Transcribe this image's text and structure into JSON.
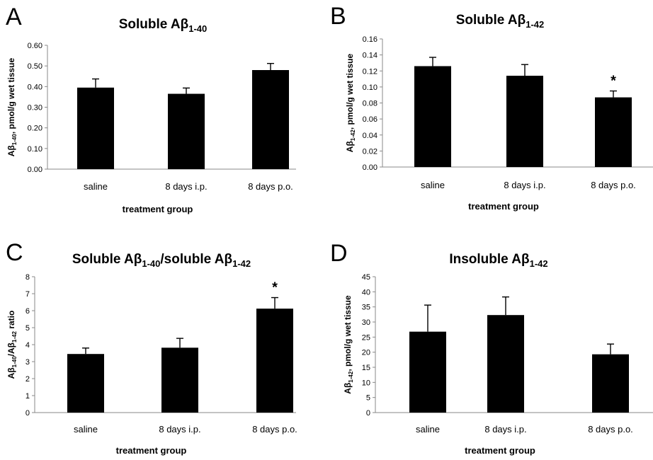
{
  "chart_data": [
    {
      "type": "bar",
      "panel": "A",
      "title": "Soluble Aβ",
      "title_sub": "1-40",
      "ylabel_pre": "Aβ",
      "ylabel_sub": "1-40",
      "ylabel_post": ", pmol/g wet tissue",
      "xlabel": "treatment group",
      "categories": [
        "saline",
        "8 days i.p.",
        "8 days p.o."
      ],
      "values": [
        0.395,
        0.365,
        0.48
      ],
      "errors": [
        0.042,
        0.028,
        0.032
      ],
      "ylim": [
        0,
        0.6
      ],
      "yticks": [
        "0.00",
        "0.10",
        "0.20",
        "0.30",
        "0.40",
        "0.50",
        "0.60"
      ],
      "significance": [
        "",
        "",
        ""
      ]
    },
    {
      "type": "bar",
      "panel": "B",
      "title": "Soluble Aβ",
      "title_sub": "1-42",
      "ylabel_pre": "Aβ",
      "ylabel_sub": "1-42",
      "ylabel_post": ", pmol/g wet tissue",
      "xlabel": "treatment group",
      "categories": [
        "saline",
        "8 days i.p.",
        "8 days p.o."
      ],
      "values": [
        0.126,
        0.114,
        0.087
      ],
      "errors": [
        0.011,
        0.014,
        0.008
      ],
      "ylim": [
        0,
        0.16
      ],
      "yticks": [
        "0.00",
        "0.02",
        "0.04",
        "0.06",
        "0.08",
        "0.10",
        "0.12",
        "0.14",
        "0.16"
      ],
      "significance": [
        "",
        "",
        "*"
      ]
    },
    {
      "type": "bar",
      "panel": "C",
      "title": "Soluble Aβ",
      "title_sub": "1-40",
      "title_mid": "/soluble Aβ",
      "title_sub2": "1-42",
      "ylabel_pre": "Aβ",
      "ylabel_sub": "1-40",
      "ylabel_mid": "/Aβ",
      "ylabel_sub2": "1-42",
      "ylabel_post": " ratio",
      "xlabel": "treatment group",
      "categories": [
        "saline",
        "8 days i.p.",
        "8 days p.o."
      ],
      "values": [
        3.45,
        3.82,
        6.12
      ],
      "errors": [
        0.35,
        0.55,
        0.65
      ],
      "ylim": [
        0,
        8
      ],
      "yticks": [
        "0",
        "1",
        "2",
        "3",
        "4",
        "5",
        "6",
        "7",
        "8"
      ],
      "significance": [
        "",
        "",
        "*"
      ]
    },
    {
      "type": "bar",
      "panel": "D",
      "title": "Insoluble Aβ",
      "title_sub": "1-42",
      "ylabel_pre": "Aβ",
      "ylabel_sub": "1-42",
      "ylabel_post": ", pmol/g wet tissue",
      "xlabel": "treatment group",
      "categories": [
        "saline",
        "8 days i.p.",
        "8 days p.o."
      ],
      "values": [
        26.8,
        32.3,
        19.3
      ],
      "errors": [
        8.8,
        6.0,
        3.4
      ],
      "ylim": [
        0,
        45
      ],
      "yticks": [
        "0",
        "5",
        "10",
        "15",
        "20",
        "25",
        "30",
        "35",
        "40",
        "45"
      ],
      "significance": [
        "",
        "",
        ""
      ]
    }
  ]
}
